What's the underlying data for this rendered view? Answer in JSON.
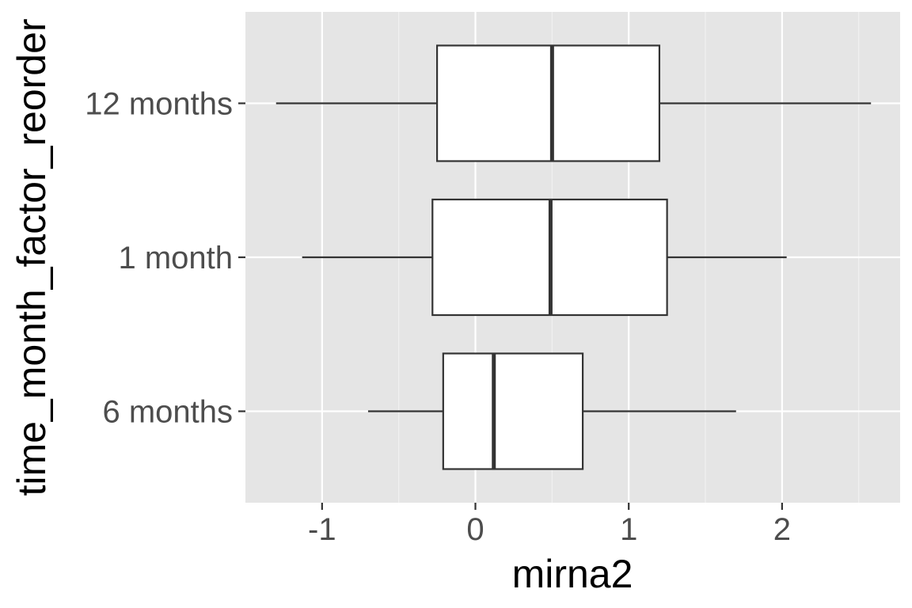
{
  "chart_data": {
    "type": "boxplot",
    "orientation": "horizontal",
    "title": "",
    "xlabel": "mirna2",
    "ylabel": "time_month_factor_reorder",
    "xlim": [
      -1.5,
      2.77
    ],
    "x_ticks": [
      -1,
      0,
      1,
      2
    ],
    "x_tick_labels": [
      "-1",
      "0",
      "1",
      "2"
    ],
    "categories": [
      "6 months",
      "1 month",
      "12 months"
    ],
    "boxes": [
      {
        "category": "6 months",
        "whisker_low": -0.7,
        "q1": -0.21,
        "median": 0.12,
        "q3": 0.7,
        "whisker_high": 1.7
      },
      {
        "category": "1 month",
        "whisker_low": -1.13,
        "q1": -0.28,
        "median": 0.49,
        "q3": 1.25,
        "whisker_high": 2.03
      },
      {
        "category": "12 months",
        "whisker_low": -1.3,
        "q1": -0.25,
        "median": 0.5,
        "q3": 1.2,
        "whisker_high": 2.58
      }
    ],
    "grid": true,
    "colors": {
      "panel_background": "#e5e5e5",
      "grid_major": "#ffffff",
      "grid_minor": "#f2f2f2",
      "box_fill": "#ffffff",
      "box_stroke": "#333333",
      "tick_label": "#4d4d4d",
      "axis_title": "#000000",
      "tick_mark": "#333333"
    }
  }
}
